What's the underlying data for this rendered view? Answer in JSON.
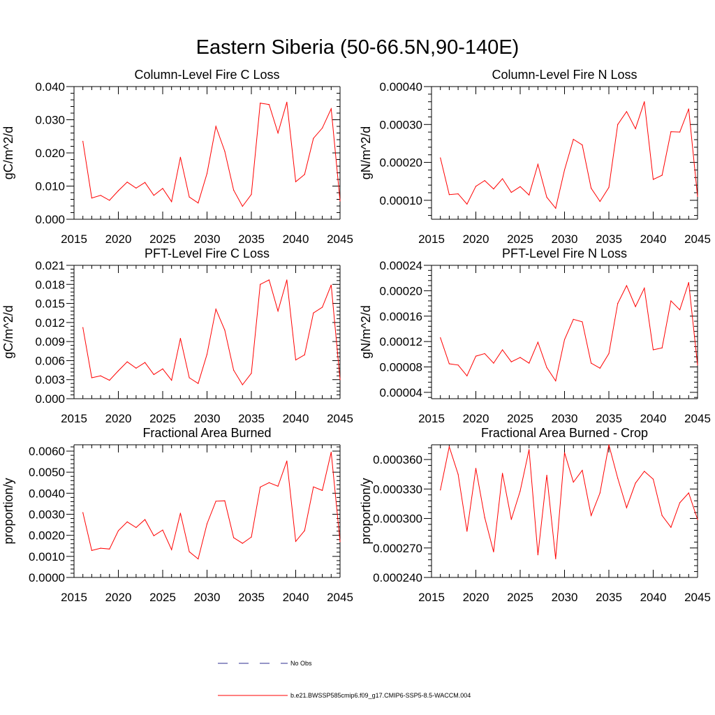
{
  "figure": {
    "title": "Eastern Siberia (50-66.5N,90-140E)",
    "line_color": "#ff0000",
    "obs_color": "#2b2b8f",
    "legend": [
      {
        "label": "No Obs",
        "style": "dashed"
      },
      {
        "label": "b.e21.BWSSP585cmip6.f09_g17.CMIP6-SSP5-8.5-WACCM.004",
        "style": "solid"
      }
    ]
  },
  "chart_data": [
    {
      "type": "line",
      "title": "Column-Level Fire C Loss",
      "ylabel": "gC/m^2/d",
      "xlabel": "",
      "xlim": [
        2015,
        2045
      ],
      "ylim": [
        0.0,
        0.04
      ],
      "x": [
        2016,
        2017,
        2018,
        2019,
        2020,
        2021,
        2022,
        2023,
        2024,
        2025,
        2026,
        2027,
        2028,
        2029,
        2030,
        2031,
        2032,
        2033,
        2034,
        2035,
        2036,
        2037,
        2038,
        2039,
        2040,
        2041,
        2042,
        2043,
        2044,
        2045
      ],
      "series": [
        {
          "name": "b.e21.BWSSP585cmip6.f09_g17.CMIP6-SSP5-8.5-WACCM.004",
          "values": [
            0.0235,
            0.0064,
            0.0072,
            0.0057,
            0.0086,
            0.0112,
            0.0094,
            0.0111,
            0.0072,
            0.0093,
            0.0053,
            0.0187,
            0.0067,
            0.0049,
            0.0138,
            0.028,
            0.0205,
            0.0088,
            0.0039,
            0.0075,
            0.035,
            0.0346,
            0.026,
            0.0353,
            0.0113,
            0.0135,
            0.0244,
            0.0275,
            0.0333,
            0.0055
          ]
        }
      ],
      "xticks": [
        "2015",
        "2020",
        "2025",
        "2030",
        "2035",
        "2040",
        "2045"
      ],
      "yticks": [
        "0.000",
        "0.010",
        "0.020",
        "0.030",
        "0.040"
      ]
    },
    {
      "type": "line",
      "title": "Column-Level Fire N Loss",
      "ylabel": "gN/m^2/d",
      "xlabel": "",
      "xlim": [
        2015,
        2045
      ],
      "ylim": [
        5e-05,
        0.0004
      ],
      "x": [
        2016,
        2017,
        2018,
        2019,
        2020,
        2021,
        2022,
        2023,
        2024,
        2025,
        2026,
        2027,
        2028,
        2029,
        2030,
        2031,
        2032,
        2033,
        2034,
        2035,
        2036,
        2037,
        2038,
        2039,
        2040,
        2041,
        2042,
        2043,
        2044,
        2045
      ],
      "series": [
        {
          "name": "b.e21.BWSSP585cmip6.f09_g17.CMIP6-SSP5-8.5-WACCM.004",
          "values": [
            0.000212,
            0.000115,
            0.000117,
            9e-05,
            0.000137,
            0.000152,
            0.00013,
            0.000157,
            0.000121,
            0.000136,
            0.000114,
            0.000195,
            0.000108,
            7.9e-05,
            0.00018,
            0.000261,
            0.000246,
            0.000132,
            9.7e-05,
            0.000134,
            0.0003,
            0.000334,
            0.000289,
            0.00036,
            0.000155,
            0.000166,
            0.000281,
            0.00028,
            0.000341,
            0.00011
          ]
        }
      ],
      "xticks": [
        "2015",
        "2020",
        "2025",
        "2030",
        "2035",
        "2040",
        "2045"
      ],
      "yticks": [
        "0.00010",
        "0.00020",
        "0.00030",
        "0.00040"
      ]
    },
    {
      "type": "line",
      "title": "PFT-Level Fire C Loss",
      "ylabel": "gC/m^2/d",
      "xlabel": "",
      "xlim": [
        2015,
        2045
      ],
      "ylim": [
        0.0,
        0.021
      ],
      "x": [
        2016,
        2017,
        2018,
        2019,
        2020,
        2021,
        2022,
        2023,
        2024,
        2025,
        2026,
        2027,
        2028,
        2029,
        2030,
        2031,
        2032,
        2033,
        2034,
        2035,
        2036,
        2037,
        2038,
        2039,
        2040,
        2041,
        2042,
        2043,
        2044,
        2045
      ],
      "series": [
        {
          "name": "b.e21.BWSSP585cmip6.f09_g17.CMIP6-SSP5-8.5-WACCM.004",
          "values": [
            0.0112,
            0.0033,
            0.0036,
            0.0029,
            0.0044,
            0.0058,
            0.0048,
            0.0057,
            0.0038,
            0.0047,
            0.0029,
            0.0095,
            0.0033,
            0.0024,
            0.007,
            0.0141,
            0.0108,
            0.0045,
            0.0022,
            0.004,
            0.018,
            0.0187,
            0.0138,
            0.0187,
            0.0061,
            0.0069,
            0.0135,
            0.0144,
            0.0179,
            0.003
          ]
        }
      ],
      "xticks": [
        "2015",
        "2020",
        "2025",
        "2030",
        "2035",
        "2040",
        "2045"
      ],
      "yticks": [
        "0.000",
        "0.003",
        "0.006",
        "0.009",
        "0.012",
        "0.015",
        "0.018",
        "0.021"
      ]
    },
    {
      "type": "line",
      "title": "PFT-Level Fire N Loss",
      "ylabel": "gN/m^2/d",
      "xlabel": "",
      "xlim": [
        2015,
        2045
      ],
      "ylim": [
        3e-05,
        0.00024
      ],
      "x": [
        2016,
        2017,
        2018,
        2019,
        2020,
        2021,
        2022,
        2023,
        2024,
        2025,
        2026,
        2027,
        2028,
        2029,
        2030,
        2031,
        2032,
        2033,
        2034,
        2035,
        2036,
        2037,
        2038,
        2039,
        2040,
        2041,
        2042,
        2043,
        2044,
        2045
      ],
      "series": [
        {
          "name": "b.e21.BWSSP585cmip6.f09_g17.CMIP6-SSP5-8.5-WACCM.004",
          "values": [
            0.000126,
            8.5e-05,
            8.3e-05,
            6.6e-05,
            9.7e-05,
            0.000101,
            8.6e-05,
            0.000107,
            8.8e-05,
            9.5e-05,
            8.6e-05,
            0.000119,
            7.9e-05,
            5.8e-05,
            0.000123,
            0.000155,
            0.000151,
            8.6e-05,
            7.8e-05,
            0.000101,
            0.00018,
            0.000208,
            0.000175,
            0.000204,
            0.000107,
            0.00011,
            0.000184,
            0.00017,
            0.000213,
            8.3e-05
          ]
        }
      ],
      "xticks": [
        "2015",
        "2020",
        "2025",
        "2030",
        "2035",
        "2040",
        "2045"
      ],
      "yticks": [
        "0.00004",
        "0.00008",
        "0.00012",
        "0.00016",
        "0.00020",
        "0.00024"
      ]
    },
    {
      "type": "line",
      "title": "Fractional Area Burned",
      "ylabel": "proportion/y",
      "xlabel": "",
      "xlim": [
        2015,
        2045
      ],
      "ylim": [
        0.0,
        0.0063
      ],
      "x": [
        2016,
        2017,
        2018,
        2019,
        2020,
        2021,
        2022,
        2023,
        2024,
        2025,
        2026,
        2027,
        2028,
        2029,
        2030,
        2031,
        2032,
        2033,
        2034,
        2035,
        2036,
        2037,
        2038,
        2039,
        2040,
        2041,
        2042,
        2043,
        2044,
        2045
      ],
      "series": [
        {
          "name": "b.e21.BWSSP585cmip6.f09_g17.CMIP6-SSP5-8.5-WACCM.004",
          "values": [
            0.00308,
            0.00128,
            0.00139,
            0.00135,
            0.00222,
            0.00264,
            0.00237,
            0.00275,
            0.00198,
            0.00225,
            0.00132,
            0.00305,
            0.00122,
            0.00088,
            0.00255,
            0.00362,
            0.00364,
            0.00189,
            0.00162,
            0.00192,
            0.00429,
            0.0045,
            0.00433,
            0.00553,
            0.00171,
            0.00222,
            0.0043,
            0.00413,
            0.00595,
            0.0017
          ]
        }
      ],
      "xticks": [
        "2015",
        "2020",
        "2025",
        "2030",
        "2035",
        "2040",
        "2045"
      ],
      "yticks": [
        "0.0000",
        "0.0010",
        "0.0020",
        "0.0030",
        "0.0040",
        "0.0050",
        "0.0060"
      ]
    },
    {
      "type": "line",
      "title": "Fractional Area Burned - Crop",
      "ylabel": "proportion/y",
      "xlabel": "",
      "xlim": [
        2015,
        2045
      ],
      "ylim": [
        0.00024,
        0.000375
      ],
      "x": [
        2016,
        2017,
        2018,
        2019,
        2020,
        2021,
        2022,
        2023,
        2024,
        2025,
        2026,
        2027,
        2028,
        2029,
        2030,
        2031,
        2032,
        2033,
        2034,
        2035,
        2036,
        2037,
        2038,
        2039,
        2040,
        2041,
        2042,
        2043,
        2044,
        2045
      ],
      "series": [
        {
          "name": "b.e21.BWSSP585cmip6.f09_g17.CMIP6-SSP5-8.5-WACCM.004",
          "values": [
            0.000329,
            0.000373,
            0.000345,
            0.000287,
            0.000351,
            0.000301,
            0.000266,
            0.000346,
            0.000299,
            0.000328,
            0.00037,
            0.000263,
            0.000344,
            0.000259,
            0.000367,
            0.000337,
            0.000349,
            0.000303,
            0.000326,
            0.000375,
            0.000341,
            0.000311,
            0.000336,
            0.000348,
            0.00034,
            0.000303,
            0.000291,
            0.000316,
            0.000326,
            0.000299
          ]
        }
      ],
      "xticks": [
        "2015",
        "2020",
        "2025",
        "2030",
        "2035",
        "2040",
        "2045"
      ],
      "yticks": [
        "0.000240",
        "0.000270",
        "0.000300",
        "0.000330",
        "0.000360"
      ]
    }
  ]
}
